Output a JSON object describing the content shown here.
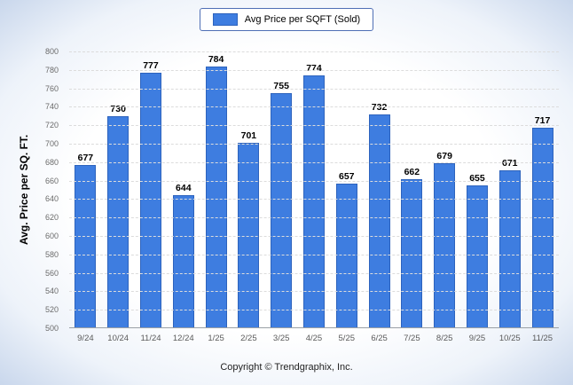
{
  "chart_data": {
    "type": "bar",
    "legend": "Avg Price per SQFT (Sold)",
    "ylabel": "Avg. Price per SQ. FT.",
    "footer": "Copyright © Trendgraphix, Inc.",
    "categories": [
      "9/24",
      "10/24",
      "11/24",
      "12/24",
      "1/25",
      "2/25",
      "3/25",
      "4/25",
      "5/25",
      "6/25",
      "7/25",
      "8/25",
      "9/25",
      "10/25",
      "11/25"
    ],
    "values": [
      677,
      730,
      777,
      644,
      784,
      701,
      755,
      774,
      657,
      732,
      662,
      679,
      655,
      671,
      717
    ],
    "ylim": [
      500,
      800
    ],
    "ytick_step": 20,
    "grid": true,
    "legend_position": "top",
    "bar_color": "#3e7de0",
    "bar_border_color": "#2d63bd"
  }
}
